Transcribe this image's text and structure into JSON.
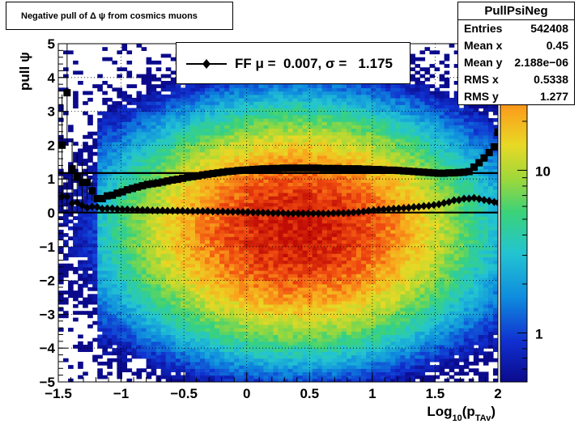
{
  "title": "Negative pull of Δ ψ from cosmics muons",
  "stats": {
    "name": "PullPsiNeg",
    "rows": [
      {
        "label": "Entries",
        "value": "542408"
      },
      {
        "label": "Mean x",
        "value": "0.45"
      },
      {
        "label": "Mean y",
        "value": "2.188e−06"
      },
      {
        "label": "RMS x",
        "value": "0.5338"
      },
      {
        "label": "RMS y",
        "value": "1.277"
      }
    ]
  },
  "legend": {
    "entry": "FF μ =  0.007, σ =   1.175"
  },
  "chart_data": {
    "type": "heatmap",
    "title": "Negative pull of Δ ψ from cosmics muons",
    "xlabel": "Log10(pTAv)",
    "xlabel_main": "Log",
    "xlabel_sub1": "10",
    "xlabel_mid": "(p",
    "xlabel_sub2": "TAv",
    "xlabel_end": ")",
    "ylabel": "pull ψ",
    "xlim": [
      -1.5,
      2
    ],
    "ylim": [
      -5,
      5
    ],
    "x_ticks": [
      "−1.5",
      "−1",
      "−0.5",
      "0",
      "0.5",
      "1",
      "1.5",
      "2"
    ],
    "x_tick_values": [
      -1.5,
      -1,
      -0.5,
      0,
      0.5,
      1,
      1.5,
      2
    ],
    "y_ticks": [
      "−5",
      "−4",
      "−3",
      "−2",
      "−1",
      "0",
      "1",
      "2",
      "3",
      "4",
      "5"
    ],
    "y_tick_values": [
      -5,
      -4,
      -3,
      -2,
      -1,
      0,
      1,
      2,
      3,
      4,
      5
    ],
    "grid": true,
    "colorbar": {
      "scale": "log",
      "ticks": [
        "1",
        "10"
      ],
      "tick_values": [
        1,
        10
      ],
      "range": [
        0.5,
        60
      ]
    },
    "hline_values": [
      1.175,
      0.007
    ],
    "heatmap_peak": {
      "x": 0.4,
      "y": -0.5,
      "sigma_x": 0.62,
      "sigma_y": 1.55,
      "max_count": 55
    },
    "series": [
      {
        "name": "rms",
        "marker": "square",
        "points": [
          [
            -1.47,
            2.0,
            1.5
          ],
          [
            -1.43,
            3.55,
            1.5
          ],
          [
            -1.39,
            1.3,
            0.9
          ],
          [
            -1.35,
            1.05,
            0.7
          ],
          [
            -1.31,
            0.9,
            0.6
          ],
          [
            -1.27,
            0.9,
            0.5
          ],
          [
            -1.23,
            0.65,
            0.3
          ],
          [
            -1.19,
            0.42
          ],
          [
            -1.15,
            0.42
          ],
          [
            -1.11,
            0.5
          ],
          [
            -1.07,
            0.52
          ],
          [
            -1.03,
            0.58
          ],
          [
            -0.99,
            0.62
          ],
          [
            -0.95,
            0.68
          ],
          [
            -0.91,
            0.72
          ],
          [
            -0.87,
            0.76
          ],
          [
            -0.83,
            0.8
          ],
          [
            -0.79,
            0.84
          ],
          [
            -0.75,
            0.86
          ],
          [
            -0.71,
            0.88
          ],
          [
            -0.67,
            0.91
          ],
          [
            -0.63,
            0.94
          ],
          [
            -0.59,
            0.97
          ],
          [
            -0.55,
            0.99
          ],
          [
            -0.51,
            1.02
          ],
          [
            -0.47,
            1.05
          ],
          [
            -0.43,
            1.07
          ],
          [
            -0.39,
            1.09
          ],
          [
            -0.35,
            1.12
          ],
          [
            -0.31,
            1.14
          ],
          [
            -0.27,
            1.16
          ],
          [
            -0.23,
            1.18
          ],
          [
            -0.19,
            1.2
          ],
          [
            -0.15,
            1.22
          ],
          [
            -0.11,
            1.23
          ],
          [
            -0.07,
            1.25
          ],
          [
            -0.03,
            1.26
          ],
          [
            0.01,
            1.27
          ],
          [
            0.05,
            1.28
          ],
          [
            0.09,
            1.29
          ],
          [
            0.13,
            1.3
          ],
          [
            0.17,
            1.3
          ],
          [
            0.21,
            1.31
          ],
          [
            0.25,
            1.31
          ],
          [
            0.29,
            1.32
          ],
          [
            0.33,
            1.32
          ],
          [
            0.37,
            1.32
          ],
          [
            0.41,
            1.32
          ],
          [
            0.45,
            1.32
          ],
          [
            0.49,
            1.32
          ],
          [
            0.53,
            1.32
          ],
          [
            0.57,
            1.32
          ],
          [
            0.61,
            1.31
          ],
          [
            0.65,
            1.31
          ],
          [
            0.69,
            1.31
          ],
          [
            0.73,
            1.31
          ],
          [
            0.77,
            1.3
          ],
          [
            0.81,
            1.3
          ],
          [
            0.85,
            1.3
          ],
          [
            0.89,
            1.3
          ],
          [
            0.93,
            1.29
          ],
          [
            0.97,
            1.29
          ],
          [
            1.01,
            1.28
          ],
          [
            1.05,
            1.28
          ],
          [
            1.09,
            1.27
          ],
          [
            1.13,
            1.26
          ],
          [
            1.17,
            1.26
          ],
          [
            1.21,
            1.25
          ],
          [
            1.25,
            1.24
          ],
          [
            1.29,
            1.23
          ],
          [
            1.33,
            1.22
          ],
          [
            1.37,
            1.21
          ],
          [
            1.41,
            1.2
          ],
          [
            1.45,
            1.19
          ],
          [
            1.49,
            1.18
          ],
          [
            1.53,
            1.17
          ],
          [
            1.57,
            1.17
          ],
          [
            1.61,
            1.18
          ],
          [
            1.65,
            1.18
          ],
          [
            1.69,
            1.19
          ],
          [
            1.73,
            1.2
          ],
          [
            1.77,
            1.22
          ],
          [
            1.81,
            1.35
          ],
          [
            1.85,
            1.48
          ],
          [
            1.89,
            1.62
          ],
          [
            1.93,
            1.78
          ],
          [
            1.97,
            1.95
          ],
          [
            2.0,
            2.38
          ]
        ]
      },
      {
        "name": "mean",
        "marker": "diamond",
        "points": [
          [
            -1.47,
            0.48,
            0.5
          ],
          [
            -1.43,
            0.48,
            0.5
          ],
          [
            -1.39,
            0.28,
            0.4
          ],
          [
            -1.35,
            0.3,
            0.3
          ],
          [
            -1.31,
            0.22,
            0.2
          ],
          [
            -1.27,
            0.15
          ],
          [
            -1.23,
            0.18
          ],
          [
            -1.19,
            0.17
          ],
          [
            -1.15,
            0.12
          ],
          [
            -1.11,
            0.13
          ],
          [
            -1.07,
            0.13
          ],
          [
            -1.03,
            0.11
          ],
          [
            -0.99,
            0.1
          ],
          [
            -0.95,
            0.1
          ],
          [
            -0.91,
            0.09
          ],
          [
            -0.87,
            0.09
          ],
          [
            -0.83,
            0.08
          ],
          [
            -0.79,
            0.08
          ],
          [
            -0.75,
            0.07
          ],
          [
            -0.71,
            0.07
          ],
          [
            -0.67,
            0.07
          ],
          [
            -0.63,
            0.06
          ],
          [
            -0.59,
            0.06
          ],
          [
            -0.55,
            0.06
          ],
          [
            -0.51,
            0.06
          ],
          [
            -0.47,
            0.05
          ],
          [
            -0.43,
            0.05
          ],
          [
            -0.39,
            0.05
          ],
          [
            -0.35,
            0.05
          ],
          [
            -0.31,
            0.05
          ],
          [
            -0.27,
            0.04
          ],
          [
            -0.23,
            0.04
          ],
          [
            -0.19,
            0.04
          ],
          [
            -0.15,
            0.03
          ],
          [
            -0.11,
            0.03
          ],
          [
            -0.07,
            0.03
          ],
          [
            -0.03,
            0.02
          ],
          [
            0.01,
            0.02
          ],
          [
            0.05,
            0.01
          ],
          [
            0.09,
            0.01
          ],
          [
            0.13,
            0.0
          ],
          [
            0.17,
            0.0
          ],
          [
            0.21,
            -0.01
          ],
          [
            0.25,
            -0.01
          ],
          [
            0.29,
            -0.01
          ],
          [
            0.33,
            -0.02
          ],
          [
            0.37,
            -0.02
          ],
          [
            0.41,
            -0.02
          ],
          [
            0.45,
            -0.02
          ],
          [
            0.49,
            -0.02
          ],
          [
            0.53,
            -0.02
          ],
          [
            0.57,
            -0.02
          ],
          [
            0.61,
            -0.02
          ],
          [
            0.65,
            -0.02
          ],
          [
            0.69,
            -0.01
          ],
          [
            0.73,
            -0.01
          ],
          [
            0.77,
            -0.01
          ],
          [
            0.81,
            0.0
          ],
          [
            0.85,
            0.01
          ],
          [
            0.89,
            0.02
          ],
          [
            0.93,
            0.04
          ],
          [
            0.97,
            0.06
          ],
          [
            1.01,
            0.08
          ],
          [
            1.05,
            0.09
          ],
          [
            1.09,
            0.1
          ],
          [
            1.13,
            0.11
          ],
          [
            1.17,
            0.12
          ],
          [
            1.21,
            0.13
          ],
          [
            1.25,
            0.14
          ],
          [
            1.29,
            0.15
          ],
          [
            1.33,
            0.17
          ],
          [
            1.37,
            0.18
          ],
          [
            1.41,
            0.2
          ],
          [
            1.45,
            0.21
          ],
          [
            1.49,
            0.23
          ],
          [
            1.53,
            0.25
          ],
          [
            1.57,
            0.29
          ],
          [
            1.61,
            0.32
          ],
          [
            1.65,
            0.37
          ],
          [
            1.69,
            0.38
          ],
          [
            1.73,
            0.42
          ],
          [
            1.77,
            0.42
          ],
          [
            1.81,
            0.44
          ],
          [
            1.85,
            0.41
          ],
          [
            1.89,
            0.38
          ],
          [
            1.93,
            0.35
          ],
          [
            1.97,
            0.32
          ],
          [
            2.0,
            0.3
          ]
        ]
      }
    ]
  }
}
